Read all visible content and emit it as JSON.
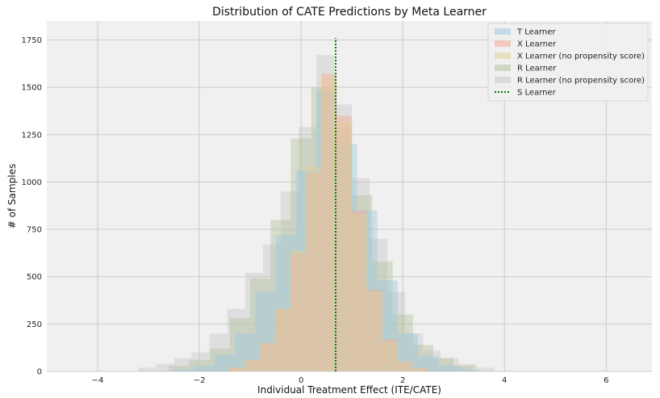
{
  "chart_data": {
    "type": "bar",
    "title": "Distribution of CATE Predictions by Meta Learner",
    "xlabel": "Individual Treatment Effect (ITE/CATE)",
    "ylabel": "# of Samples",
    "xlim": [
      -5.0,
      6.9
    ],
    "ylim": [
      0,
      1850
    ],
    "xticks": [
      -4,
      -2,
      0,
      2,
      4,
      6
    ],
    "yticks": [
      0,
      250,
      500,
      750,
      1000,
      1250,
      1500,
      1750
    ],
    "grid": true,
    "legend_position": "top-right",
    "colors": {
      "background": "#f0f0f0",
      "grid": "#cbcbcb",
      "T Learner": "#9ecae1",
      "X Learner": "#f4a89a",
      "X Learner (no propensity score)": "#e6cf9a",
      "R Learner": "#b4c49f",
      "R Learner (no propensity score)": "#c8c8c8",
      "S Learner": "#008000"
    },
    "series": [
      {
        "name": "R Learner (no propensity score)",
        "style": "hist",
        "bins": [
          {
            "x0": -3.2,
            "x1": -2.85,
            "count": 20
          },
          {
            "x0": -2.85,
            "x1": -2.5,
            "count": 40
          },
          {
            "x0": -2.5,
            "x1": -2.15,
            "count": 70
          },
          {
            "x0": -2.15,
            "x1": -1.8,
            "count": 100
          },
          {
            "x0": -1.8,
            "x1": -1.45,
            "count": 200
          },
          {
            "x0": -1.45,
            "x1": -1.1,
            "count": 330
          },
          {
            "x0": -1.1,
            "x1": -0.75,
            "count": 520
          },
          {
            "x0": -0.75,
            "x1": -0.4,
            "count": 670
          },
          {
            "x0": -0.4,
            "x1": -0.05,
            "count": 950
          },
          {
            "x0": -0.05,
            "x1": 0.3,
            "count": 1290
          },
          {
            "x0": 0.3,
            "x1": 0.65,
            "count": 1670
          },
          {
            "x0": 0.65,
            "x1": 1.0,
            "count": 1410
          },
          {
            "x0": 1.0,
            "x1": 1.35,
            "count": 1020
          },
          {
            "x0": 1.35,
            "x1": 1.7,
            "count": 700
          },
          {
            "x0": 1.7,
            "x1": 2.05,
            "count": 420
          },
          {
            "x0": 2.05,
            "x1": 2.4,
            "count": 200
          },
          {
            "x0": 2.4,
            "x1": 2.75,
            "count": 110
          },
          {
            "x0": 2.75,
            "x1": 3.1,
            "count": 70
          },
          {
            "x0": 3.1,
            "x1": 3.45,
            "count": 40
          },
          {
            "x0": 3.45,
            "x1": 3.8,
            "count": 20
          }
        ]
      },
      {
        "name": "R Learner",
        "style": "hist",
        "bins": [
          {
            "x0": -2.6,
            "x1": -2.2,
            "count": 30
          },
          {
            "x0": -2.2,
            "x1": -1.8,
            "count": 60
          },
          {
            "x0": -1.8,
            "x1": -1.4,
            "count": 120
          },
          {
            "x0": -1.4,
            "x1": -1.0,
            "count": 280
          },
          {
            "x0": -1.0,
            "x1": -0.6,
            "count": 490
          },
          {
            "x0": -0.6,
            "x1": -0.2,
            "count": 800
          },
          {
            "x0": -0.2,
            "x1": 0.2,
            "count": 1230
          },
          {
            "x0": 0.2,
            "x1": 0.6,
            "count": 1500
          },
          {
            "x0": 0.6,
            "x1": 1.0,
            "count": 1290
          },
          {
            "x0": 1.0,
            "x1": 1.4,
            "count": 930
          },
          {
            "x0": 1.4,
            "x1": 1.8,
            "count": 580
          },
          {
            "x0": 1.8,
            "x1": 2.2,
            "count": 300
          },
          {
            "x0": 2.2,
            "x1": 2.6,
            "count": 140
          },
          {
            "x0": 2.6,
            "x1": 3.0,
            "count": 70
          },
          {
            "x0": 3.0,
            "x1": 3.4,
            "count": 30
          }
        ]
      },
      {
        "name": "T Learner",
        "style": "hist",
        "bins": [
          {
            "x0": -2.5,
            "x1": -2.1,
            "count": 10
          },
          {
            "x0": -2.1,
            "x1": -1.7,
            "count": 30
          },
          {
            "x0": -1.7,
            "x1": -1.3,
            "count": 90
          },
          {
            "x0": -1.3,
            "x1": -0.9,
            "count": 200
          },
          {
            "x0": -0.9,
            "x1": -0.5,
            "count": 420
          },
          {
            "x0": -0.5,
            "x1": -0.1,
            "count": 720
          },
          {
            "x0": -0.1,
            "x1": 0.3,
            "count": 1060
          },
          {
            "x0": 0.3,
            "x1": 0.7,
            "count": 1480
          },
          {
            "x0": 0.7,
            "x1": 1.1,
            "count": 1200
          },
          {
            "x0": 1.1,
            "x1": 1.5,
            "count": 850
          },
          {
            "x0": 1.5,
            "x1": 1.9,
            "count": 480
          },
          {
            "x0": 1.9,
            "x1": 2.3,
            "count": 200
          },
          {
            "x0": 2.3,
            "x1": 2.7,
            "count": 80
          },
          {
            "x0": 2.7,
            "x1": 3.1,
            "count": 30
          },
          {
            "x0": 3.1,
            "x1": 3.5,
            "count": 10
          }
        ]
      },
      {
        "name": "X Learner",
        "style": "hist",
        "bins": [
          {
            "x0": -1.4,
            "x1": -1.1,
            "count": 20
          },
          {
            "x0": -1.1,
            "x1": -0.8,
            "count": 60
          },
          {
            "x0": -0.8,
            "x1": -0.5,
            "count": 150
          },
          {
            "x0": -0.5,
            "x1": -0.2,
            "count": 330
          },
          {
            "x0": -0.2,
            "x1": 0.1,
            "count": 620
          },
          {
            "x0": 0.1,
            "x1": 0.4,
            "count": 1050
          },
          {
            "x0": 0.4,
            "x1": 0.7,
            "count": 1570
          },
          {
            "x0": 0.7,
            "x1": 1.0,
            "count": 1350
          },
          {
            "x0": 1.0,
            "x1": 1.3,
            "count": 850
          },
          {
            "x0": 1.3,
            "x1": 1.6,
            "count": 430
          },
          {
            "x0": 1.6,
            "x1": 1.9,
            "count": 170
          },
          {
            "x0": 1.9,
            "x1": 2.2,
            "count": 50
          },
          {
            "x0": 2.2,
            "x1": 2.5,
            "count": 15
          }
        ]
      },
      {
        "name": "X Learner (no propensity score)",
        "style": "hist",
        "bins": [
          {
            "x0": -1.4,
            "x1": -1.1,
            "count": 20
          },
          {
            "x0": -1.1,
            "x1": -0.8,
            "count": 60
          },
          {
            "x0": -0.8,
            "x1": -0.5,
            "count": 150
          },
          {
            "x0": -0.5,
            "x1": -0.2,
            "count": 330
          },
          {
            "x0": -0.2,
            "x1": 0.1,
            "count": 640
          },
          {
            "x0": 0.1,
            "x1": 0.4,
            "count": 1080
          },
          {
            "x0": 0.4,
            "x1": 0.7,
            "count": 1550
          },
          {
            "x0": 0.7,
            "x1": 1.0,
            "count": 1320
          },
          {
            "x0": 1.0,
            "x1": 1.3,
            "count": 830
          },
          {
            "x0": 1.3,
            "x1": 1.6,
            "count": 420
          },
          {
            "x0": 1.6,
            "x1": 1.9,
            "count": 160
          },
          {
            "x0": 1.9,
            "x1": 2.2,
            "count": 50
          },
          {
            "x0": 2.2,
            "x1": 2.5,
            "count": 15
          }
        ]
      },
      {
        "name": "S Learner",
        "style": "vline",
        "x": 0.68,
        "y_top": 1760
      }
    ]
  }
}
